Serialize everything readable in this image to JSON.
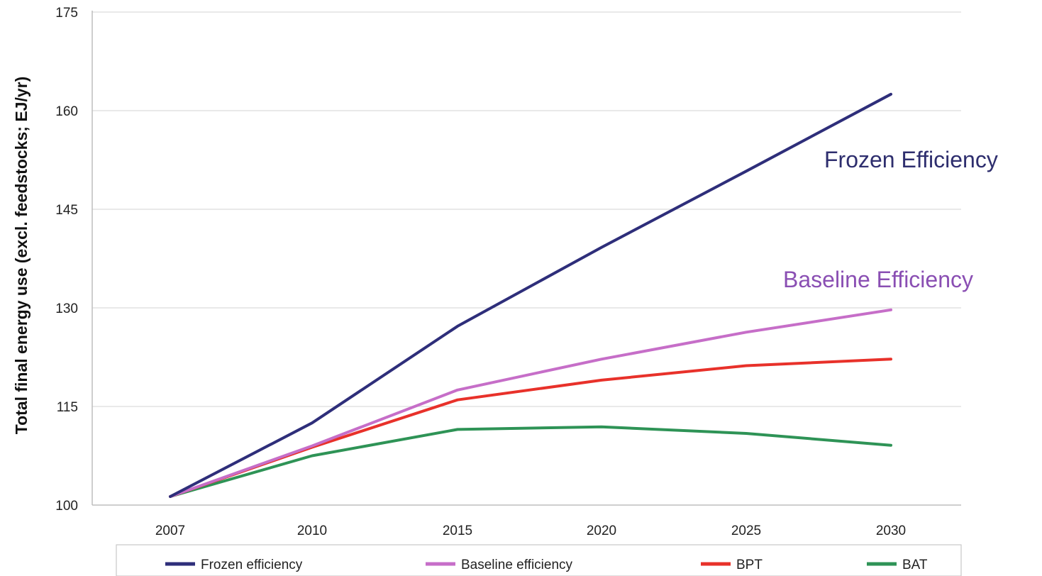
{
  "chart_data": {
    "type": "line",
    "title": "",
    "xlabel": "",
    "ylabel": "Total final energy use (excl. feedstocks; EJ/yr)",
    "x": [
      "2007",
      "2010",
      "2015",
      "2020",
      "2025",
      "2030"
    ],
    "ylim": [
      100,
      175
    ],
    "yticks": [
      100,
      115,
      130,
      145,
      160,
      175
    ],
    "grid": true,
    "legend_position": "bottom",
    "series": [
      {
        "name": "Frozen efficiency",
        "color": "#2e2e7a",
        "values": [
          101.3,
          112.5,
          127.2,
          139.2,
          150.8,
          162.5
        ]
      },
      {
        "name": "Baseline efficiency",
        "color": "#c66ec8",
        "values": [
          101.3,
          109.0,
          117.5,
          122.2,
          126.3,
          129.7
        ]
      },
      {
        "name": "BPT",
        "color": "#e8312a",
        "values": [
          101.3,
          108.8,
          116.0,
          119.0,
          121.2,
          122.2
        ]
      },
      {
        "name": "BAT",
        "color": "#2e9356",
        "values": [
          101.3,
          107.5,
          111.5,
          111.9,
          110.9,
          109.1
        ]
      }
    ],
    "annotations": [
      {
        "text": "Frozen Efficiency",
        "color": "#2e2e6e",
        "series": "Frozen efficiency"
      },
      {
        "text": "Baseline Efficiency",
        "color": "#8a4fb3",
        "series": "Baseline efficiency"
      }
    ]
  }
}
